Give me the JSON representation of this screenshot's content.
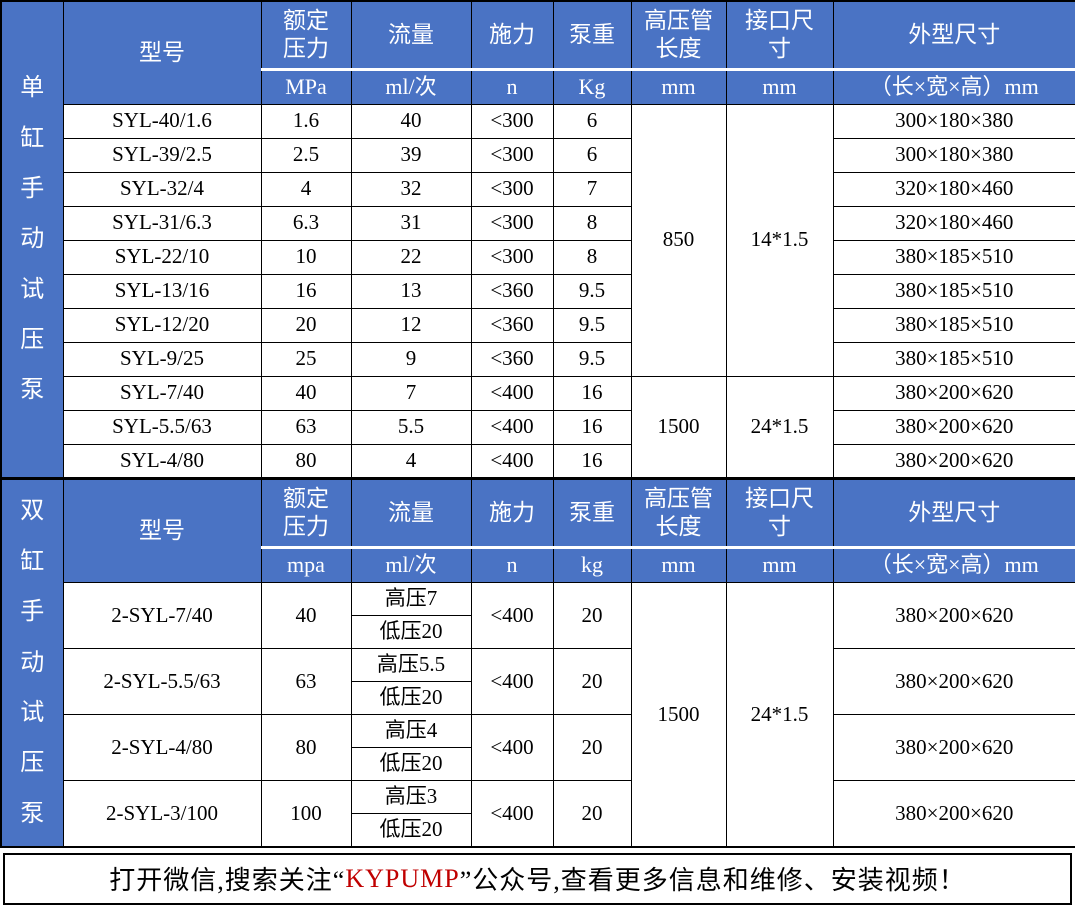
{
  "colors": {
    "header_bg": "#4a73c4",
    "header_text": "#ffffff",
    "body_bg": "#ffffff",
    "text": "#000000",
    "border": "#000000",
    "brand_red": "#c00000"
  },
  "sections": [
    {
      "sidebar_label": "单缸手动试压泵",
      "columns": {
        "model": "型号",
        "pressure": "额定压力",
        "flow": "流量",
        "force": "施力",
        "weight": "泵重",
        "pipe": "高压管长度",
        "interface": "接口尺寸",
        "dims": "外型尺寸"
      },
      "units": {
        "pressure": "MPa",
        "flow": "ml/次",
        "force": "n",
        "weight": "Kg",
        "pipe": "mm",
        "interface": "mm",
        "dims": "（长×宽×高）mm"
      },
      "rows": [
        {
          "model": "SYL-40/1.6",
          "pressure": "1.6",
          "flow": "40",
          "force": "<300",
          "weight": "6",
          "dims": "300×180×380"
        },
        {
          "model": "SYL-39/2.5",
          "pressure": "2.5",
          "flow": "39",
          "force": "<300",
          "weight": "6",
          "dims": "300×180×380"
        },
        {
          "model": "SYL-32/4",
          "pressure": "4",
          "flow": "32",
          "force": "<300",
          "weight": "7",
          "dims": "320×180×460"
        },
        {
          "model": "SYL-31/6.3",
          "pressure": "6.3",
          "flow": "31",
          "force": "<300",
          "weight": "8",
          "dims": "320×180×460"
        },
        {
          "model": "SYL-22/10",
          "pressure": "10",
          "flow": "22",
          "force": "<300",
          "weight": "8",
          "dims": "380×185×510"
        },
        {
          "model": "SYL-13/16",
          "pressure": "16",
          "flow": "13",
          "force": "<360",
          "weight": "9.5",
          "dims": "380×185×510"
        },
        {
          "model": "SYL-12/20",
          "pressure": "20",
          "flow": "12",
          "force": "<360",
          "weight": "9.5",
          "dims": "380×185×510"
        },
        {
          "model": "SYL-9/25",
          "pressure": "25",
          "flow": "9",
          "force": "<360",
          "weight": "9.5",
          "dims": "380×185×510"
        },
        {
          "model": "SYL-7/40",
          "pressure": "40",
          "flow": "7",
          "force": "<400",
          "weight": "16",
          "dims": "380×200×620"
        },
        {
          "model": "SYL-5.5/63",
          "pressure": "63",
          "flow": "5.5",
          "force": "<400",
          "weight": "16",
          "dims": "380×200×620"
        },
        {
          "model": "SYL-4/80",
          "pressure": "80",
          "flow": "4",
          "force": "<400",
          "weight": "16",
          "dims": "380×200×620"
        }
      ],
      "pipe_groups": [
        {
          "start": 0,
          "span": 8,
          "pipe": "850",
          "interface": "14*1.5"
        },
        {
          "start": 8,
          "span": 3,
          "pipe": "1500",
          "interface": "24*1.5"
        }
      ]
    },
    {
      "sidebar_label": "双缸手动试压泵",
      "columns": {
        "model": "型号",
        "pressure": "额定压力",
        "flow": "流量",
        "force": "施力",
        "weight": "泵重",
        "pipe": "高压管长度",
        "interface": "接口尺寸",
        "dims": "外型尺寸"
      },
      "units": {
        "pressure": "mpa",
        "flow": "ml/次",
        "force": "n",
        "weight": "kg",
        "pipe": "mm",
        "interface": "mm",
        "dims": "（长×宽×高）mm"
      },
      "rows": [
        {
          "model": "2-SYL-7/40",
          "pressure": "40",
          "flow_high": "高压7",
          "flow_low": "低压20",
          "force": "<400",
          "weight": "20",
          "dims": "380×200×620"
        },
        {
          "model": "2-SYL-5.5/63",
          "pressure": "63",
          "flow_high": "高压5.5",
          "flow_low": "低压20",
          "force": "<400",
          "weight": "20",
          "dims": "380×200×620"
        },
        {
          "model": "2-SYL-4/80",
          "pressure": "80",
          "flow_high": "高压4",
          "flow_low": "低压20",
          "force": "<400",
          "weight": "20",
          "dims": "380×200×620"
        },
        {
          "model": "2-SYL-3/100",
          "pressure": "100",
          "flow_high": "高压3",
          "flow_low": "低压20",
          "force": "<400",
          "weight": "20",
          "dims": "380×200×620"
        }
      ],
      "pipe_groups": [
        {
          "start": 0,
          "span": 4,
          "pipe": "1500",
          "interface": "24*1.5"
        }
      ]
    }
  ],
  "footer": {
    "prefix": "打开微信,搜索关注“",
    "brand": "KYPUMP",
    "suffix": "”公众号,查看更多信息和维修、安装视频！"
  }
}
